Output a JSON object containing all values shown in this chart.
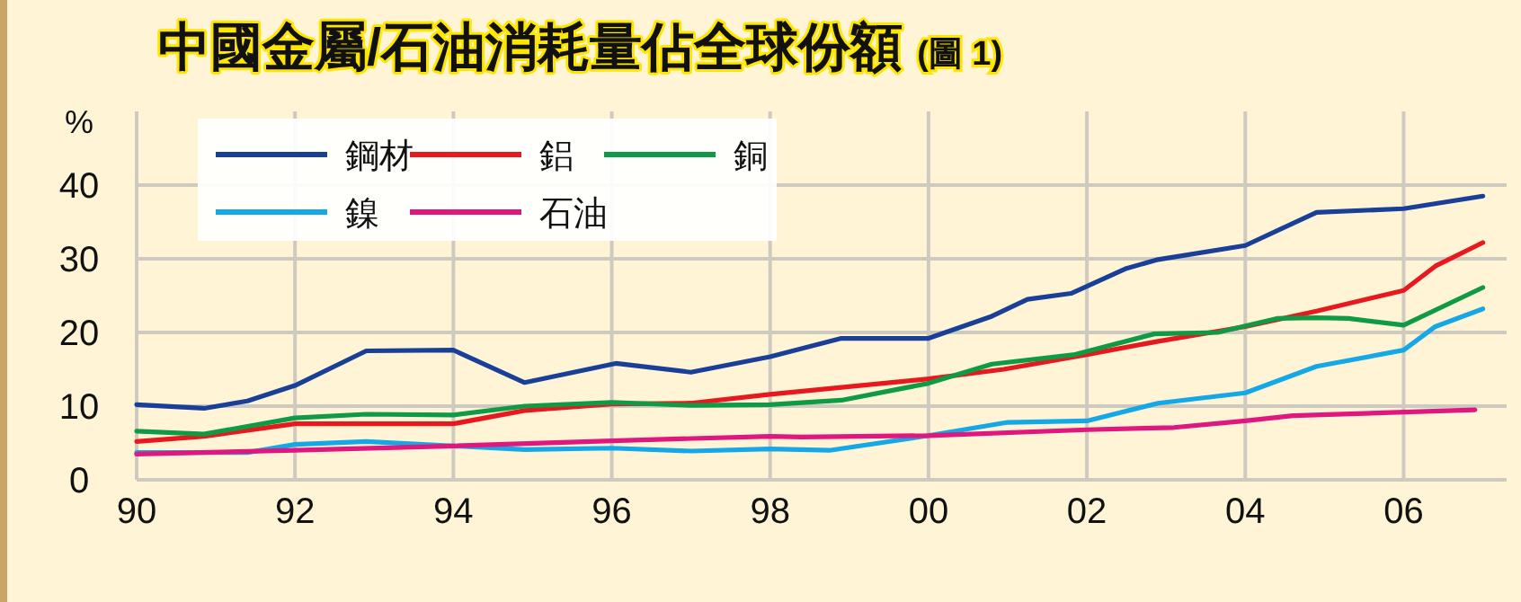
{
  "chart_data": {
    "type": "line",
    "title": "中國金屬/石油消耗量佔全球份額",
    "subtitle": "(圖 1)",
    "ylabel": "%",
    "xlim": [
      1990,
      2007.3
    ],
    "ylim": [
      0,
      50
    ],
    "xticks": [
      {
        "value": 1990,
        "label": "90"
      },
      {
        "value": 1992,
        "label": "92"
      },
      {
        "value": 1994,
        "label": "94"
      },
      {
        "value": 1996,
        "label": "96"
      },
      {
        "value": 1998,
        "label": "98"
      },
      {
        "value": 2000,
        "label": "00"
      },
      {
        "value": 2002,
        "label": "02"
      },
      {
        "value": 2004,
        "label": "04"
      },
      {
        "value": 2006,
        "label": "06"
      }
    ],
    "yticks": [
      0,
      10,
      20,
      30,
      40
    ],
    "grid": true,
    "legend": "top left",
    "marker": "none",
    "line_style": "solid",
    "series": [
      {
        "name": "鋼材",
        "color": "#1a3f99",
        "x": [
          1990,
          1990.85,
          1991.4,
          1992,
          1992.9,
          1994,
          1994.9,
          1996.05,
          1997,
          1998,
          1998.9,
          2000,
          2000.8,
          2001.25,
          2001.8,
          2002.5,
          2002.9,
          2004,
          2004.9,
          2006,
          2007
        ],
        "values": [
          10.2,
          9.7,
          10.7,
          12.8,
          17.5,
          17.6,
          13.2,
          15.8,
          14.6,
          16.7,
          19.2,
          19.2,
          22.2,
          24.5,
          25.3,
          28.7,
          29.9,
          31.8,
          36.3,
          36.8,
          38.5
        ]
      },
      {
        "name": "鋁",
        "color": "#e8191e",
        "x": [
          1990,
          1990.85,
          1992,
          1994,
          1994.9,
          1996,
          1997,
          1998,
          2000,
          2000.95,
          2002,
          2002.9,
          2004,
          2004.9,
          2006,
          2006.4,
          2007
        ],
        "values": [
          5.2,
          5.9,
          7.6,
          7.6,
          9.4,
          10.3,
          10.4,
          11.6,
          13.7,
          15.0,
          17.0,
          18.8,
          20.8,
          22.9,
          25.7,
          29.0,
          32.2
        ]
      },
      {
        "name": "銅",
        "color": "#0f9a45",
        "x": [
          1990,
          1990.85,
          1992,
          1992.9,
          1994,
          1994.9,
          1996,
          1997,
          1998,
          1998.9,
          2000,
          2000.8,
          2001.85,
          2002.85,
          2003.65,
          2004.4,
          2004.9,
          2005.3,
          2006,
          2007
        ],
        "values": [
          6.6,
          6.2,
          8.4,
          8.9,
          8.8,
          10.0,
          10.5,
          10.1,
          10.2,
          10.8,
          13.1,
          15.7,
          17.0,
          19.8,
          20.0,
          21.9,
          22.0,
          21.9,
          21.0,
          26.1
        ]
      },
      {
        "name": "鎳",
        "color": "#14a8e6",
        "x": [
          1990,
          1991.4,
          1992,
          1992.9,
          1994,
          1994.9,
          1996,
          1997,
          1998,
          1998.75,
          2000,
          2001,
          2002,
          2002.9,
          2004,
          2004.9,
          2006,
          2006.4,
          2007
        ],
        "values": [
          3.7,
          3.7,
          4.8,
          5.2,
          4.6,
          4.1,
          4.3,
          3.9,
          4.2,
          4.0,
          6.0,
          7.8,
          8.0,
          10.4,
          11.8,
          15.4,
          17.6,
          20.8,
          23.2
        ]
      },
      {
        "name": "石油",
        "color": "#e0177f",
        "x": [
          1990,
          1992,
          1994,
          1996,
          1998,
          1998.4,
          2000,
          2002,
          2003.1,
          2004,
          2004.6,
          2006.9
        ],
        "values": [
          3.5,
          4.0,
          4.6,
          5.3,
          5.9,
          5.8,
          6.0,
          6.8,
          7.1,
          8.0,
          8.7,
          9.5
        ]
      }
    ]
  }
}
